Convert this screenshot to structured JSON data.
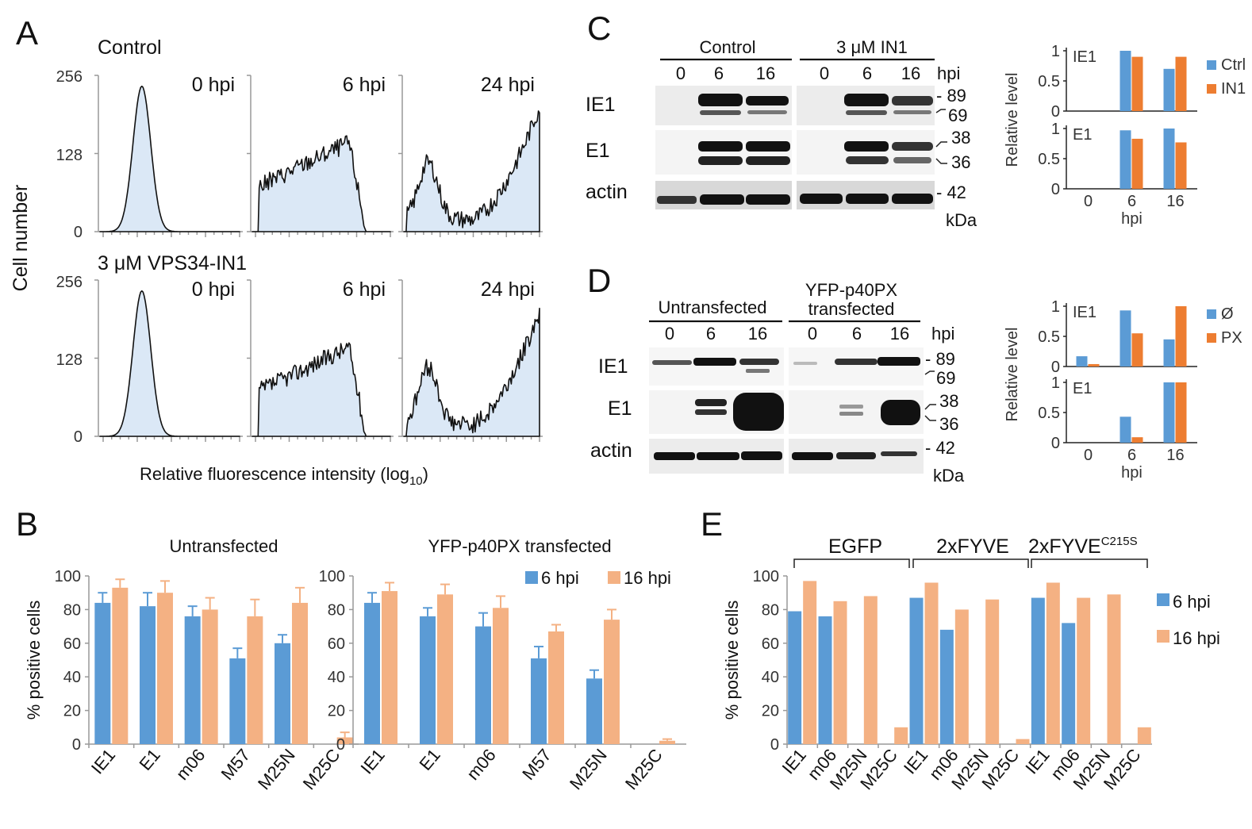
{
  "colors": {
    "blue": "#5b9bd5",
    "orange": "#f4b183",
    "orange_dark": "#ed7d31",
    "hist_fill": "#dbe8f6"
  },
  "panelA": {
    "letter": "A",
    "row_titles": [
      "Control",
      "3 μM VPS34-IN1"
    ],
    "time_labels": [
      "0 hpi",
      "6 hpi",
      "24 hpi"
    ],
    "ylabel": "Cell number",
    "yticks": [
      "256",
      "128",
      "0"
    ],
    "xlabel_main": "Relative fluorescence intensity (log",
    "xlabel_sub": "10",
    "xlabel_end": ")"
  },
  "panelC": {
    "letter": "C",
    "groups": [
      "Control",
      "3 μM IN1"
    ],
    "lanes": [
      "0",
      "6",
      "16",
      "0",
      "6",
      "16"
    ],
    "hpi": "hpi",
    "rows": [
      "IE1",
      "E1",
      "actin"
    ],
    "markers": [
      "- 89",
      "69",
      "38",
      "36",
      "- 42"
    ],
    "kda": "kDa"
  },
  "panelD": {
    "letter": "D",
    "groups": [
      "Untransfected",
      "YFP-p40PX",
      "transfected"
    ],
    "lanes": [
      "0",
      "6",
      "16",
      "0",
      "6",
      "16"
    ],
    "hpi": "hpi",
    "rows": [
      "IE1",
      "E1",
      "actin"
    ],
    "markers": [
      "- 89",
      "69",
      "38",
      "36",
      "- 42"
    ],
    "kda": "kDa"
  },
  "panelB": {
    "letter": "B"
  },
  "panelE": {
    "letter": "E",
    "groups": [
      "EGFP",
      "2xFYVE",
      "2xFYVE",
      "C215S"
    ]
  },
  "chart_data": [
    {
      "id": "C-right",
      "type": "bar",
      "ylabel": "Relative  level",
      "xlabel": "hpi",
      "categories": [
        "0",
        "6",
        "16"
      ],
      "ylim": [
        0,
        1
      ],
      "yticks": [
        "1",
        "0.5",
        "0"
      ],
      "legend": [
        "Ctrl",
        "IN1"
      ],
      "panels": [
        {
          "name": "IE1",
          "series": [
            {
              "name": "Ctrl",
              "values": [
                0,
                1.0,
                0.7
              ]
            },
            {
              "name": "IN1",
              "values": [
                0,
                0.9,
                0.9
              ]
            }
          ]
        },
        {
          "name": "E1",
          "series": [
            {
              "name": "Ctrl",
              "values": [
                0,
                0.97,
                1.0
              ]
            },
            {
              "name": "IN1",
              "values": [
                0,
                0.83,
                0.77
              ]
            }
          ]
        }
      ]
    },
    {
      "id": "D-right",
      "type": "bar",
      "ylabel": "Relative  level",
      "xlabel": "hpi",
      "categories": [
        "0",
        "6",
        "16"
      ],
      "ylim": [
        0,
        1
      ],
      "yticks": [
        "1",
        "0.5",
        "0"
      ],
      "legend": [
        "Ø",
        "PX"
      ],
      "panels": [
        {
          "name": "IE1",
          "series": [
            {
              "name": "Ø",
              "values": [
                0.17,
                0.93,
                0.45
              ]
            },
            {
              "name": "PX",
              "values": [
                0.04,
                0.55,
                1.0
              ]
            }
          ]
        },
        {
          "name": "E1",
          "series": [
            {
              "name": "Ø",
              "values": [
                0,
                0.43,
                1.0
              ]
            },
            {
              "name": "PX",
              "values": [
                0,
                0.09,
                1.0
              ]
            }
          ]
        }
      ]
    },
    {
      "id": "B-left",
      "type": "bar",
      "title": "Untransfected",
      "ylabel": "% positive cells",
      "categories": [
        "IE1",
        "E1",
        "m06",
        "M57",
        "M25N",
        "M25C"
      ],
      "ylim": [
        0,
        100
      ],
      "yticks": [
        "100",
        "80",
        "60",
        "40",
        "20",
        "0"
      ],
      "series": [
        {
          "name": "6 hpi",
          "values": [
            84,
            82,
            76,
            51,
            60,
            0
          ],
          "errors": [
            6,
            8,
            6,
            6,
            5,
            0
          ]
        },
        {
          "name": "16 hpi",
          "values": [
            93,
            90,
            80,
            76,
            84,
            4
          ],
          "errors": [
            5,
            7,
            7,
            10,
            9,
            3
          ]
        }
      ]
    },
    {
      "id": "B-right",
      "type": "bar",
      "title": "YFP-p40PX transfected",
      "categories": [
        "IE1",
        "E1",
        "m06",
        "M57",
        "M25N",
        "M25C"
      ],
      "ylim": [
        0,
        100
      ],
      "yticks": [
        "100",
        "80",
        "60",
        "40",
        "20",
        "0"
      ],
      "legend": [
        "6 hpi",
        "16 hpi"
      ],
      "series": [
        {
          "name": "6 hpi",
          "values": [
            84,
            76,
            70,
            51,
            39,
            0
          ],
          "errors": [
            6,
            5,
            8,
            7,
            5,
            0
          ]
        },
        {
          "name": "16 hpi",
          "values": [
            91,
            89,
            81,
            67,
            74,
            2
          ],
          "errors": [
            5,
            6,
            7,
            4,
            6,
            1
          ]
        }
      ]
    },
    {
      "id": "E",
      "type": "bar",
      "ylabel": "% positive cells",
      "categories": [
        "IE1",
        "m06",
        "M25N",
        "M25C",
        "IE1",
        "m06",
        "M25N",
        "M25C",
        "IE1",
        "m06",
        "M25N",
        "M25C"
      ],
      "ylim": [
        0,
        100
      ],
      "yticks": [
        "100",
        "80",
        "60",
        "40",
        "20",
        "0"
      ],
      "legend": [
        "6 hpi",
        "16 hpi"
      ],
      "series": [
        {
          "name": "6 hpi",
          "values": [
            79,
            76,
            0,
            0,
            87,
            68,
            0,
            0,
            87,
            72,
            0,
            0
          ]
        },
        {
          "name": "16 hpi",
          "values": [
            97,
            85,
            88,
            10,
            96,
            80,
            86,
            3,
            96,
            87,
            89,
            10
          ]
        }
      ]
    }
  ]
}
